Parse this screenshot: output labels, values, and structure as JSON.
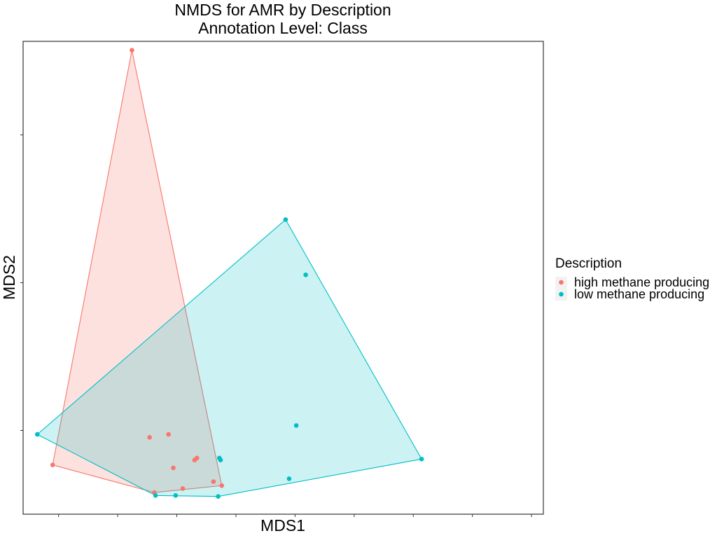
{
  "chart_data": {
    "type": "scatter",
    "title": "NMDS for AMR by Description",
    "subtitle": "Annotation Level: Class",
    "xlabel": "MDS1",
    "ylabel": "MDS2",
    "xlim": [
      -1.8,
      2.6
    ],
    "ylim": [
      -1.85,
      2.95
    ],
    "xticks": [
      -1.5,
      -1.0,
      -0.5,
      0.0,
      0.5,
      1.0,
      1.5,
      2.0,
      2.5
    ],
    "yticks": [
      -1.0,
      0.5,
      2.0
    ],
    "grid": false,
    "legend_position": "right",
    "legend_title": "Description",
    "series": [
      {
        "name": "high methane producing",
        "color": "#F8766D",
        "hull_fill": "#F8766D",
        "hull_opacity": 0.22,
        "points": [
          {
            "x": -1.55,
            "y": -1.35
          },
          {
            "x": -0.88,
            "y": 2.86
          },
          {
            "x": -0.33,
            "y": -1.28
          },
          {
            "x": -0.73,
            "y": -1.07
          },
          {
            "x": -0.57,
            "y": -1.04
          },
          {
            "x": -0.53,
            "y": -1.38
          },
          {
            "x": -0.35,
            "y": -1.3
          },
          {
            "x": -0.19,
            "y": -1.52
          },
          {
            "x": -0.12,
            "y": -1.56
          },
          {
            "x": -0.69,
            "y": -1.63
          },
          {
            "x": -0.45,
            "y": -1.59
          }
        ]
      },
      {
        "name": "low methane producing",
        "color": "#00BFC4",
        "hull_fill": "#00BFC4",
        "hull_opacity": 0.2,
        "points": [
          {
            "x": -1.68,
            "y": -1.04
          },
          {
            "x": 0.42,
            "y": 1.14
          },
          {
            "x": 0.59,
            "y": 0.58
          },
          {
            "x": 0.51,
            "y": -0.95
          },
          {
            "x": 0.45,
            "y": -1.49
          },
          {
            "x": 1.57,
            "y": -1.29
          },
          {
            "x": -0.14,
            "y": -1.28
          },
          {
            "x": -0.13,
            "y": -1.3
          },
          {
            "x": -0.68,
            "y": -1.66
          },
          {
            "x": -0.51,
            "y": -1.66
          },
          {
            "x": -0.15,
            "y": -1.67
          }
        ]
      }
    ]
  }
}
